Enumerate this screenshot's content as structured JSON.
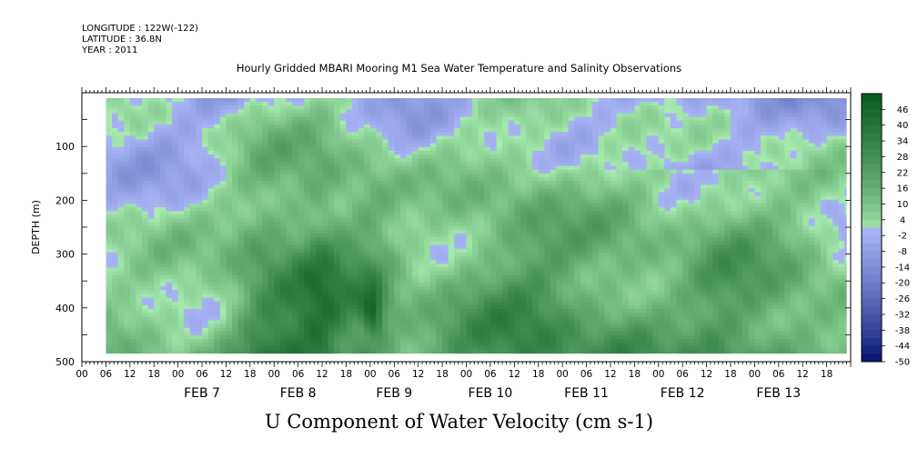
{
  "header": {
    "longitude": "LONGITUDE : 122W(-122)",
    "latitude": "LATITUDE : 36.8N",
    "year": "YEAR : 2011"
  },
  "chart_data": {
    "type": "heatmap",
    "title": "Hourly Gridded MBARI Mooring M1 Sea Water Temperature and Salinity Observations",
    "caption": "U Component of Water Velocity (cm s-1)",
    "ylabel": "DEPTH (m)",
    "xlabel": "",
    "x_range": [
      "2011-02-06T00:00",
      "2011-02-13T23:00"
    ],
    "data_x_range": [
      "2011-02-06T06:00",
      "2011-02-13T23:00"
    ],
    "ylim": [
      500,
      0
    ],
    "data_depth_range": [
      10,
      485
    ],
    "y_reversed": true,
    "ytick_labels": [
      100,
      200,
      300,
      400,
      500
    ],
    "xtick_hour_labels": [
      "00",
      "06",
      "12",
      "18",
      "00",
      "06",
      "12",
      "18",
      "00",
      "06",
      "12",
      "18",
      "00",
      "06",
      "12",
      "18",
      "00",
      "06",
      "12",
      "18",
      "00",
      "06",
      "12",
      "18",
      "00",
      "06",
      "12",
      "18",
      "00",
      "06",
      "12",
      "18"
    ],
    "xtick_day_labels": [
      "FEB 7",
      "FEB 8",
      "FEB 9",
      "FEB 10",
      "FEB 11",
      "FEB 12",
      "FEB 13"
    ],
    "colorbar": {
      "labels": [
        46,
        40,
        34,
        28,
        22,
        16,
        10,
        4,
        -2,
        -8,
        -14,
        -20,
        -26,
        -32,
        -38,
        -44,
        -50
      ],
      "range": [
        -50,
        52
      ],
      "low_color": "#000e6e",
      "mid_low_color": "#a8b4f4",
      "mid_high_color": "#a8ecb0",
      "high_color": "#0a5a1e"
    },
    "pattern_description_values": {
      "depth_columns_green_days": [
        "FEB 8 18",
        "FEB 9 00",
        "FEB 9 06",
        "FEB 10",
        "FEB 11 12",
        "FEB 12 12",
        "FEB 13 06"
      ],
      "deep_core_max_value": 34,
      "surface_blue_min_value": -20
    }
  }
}
